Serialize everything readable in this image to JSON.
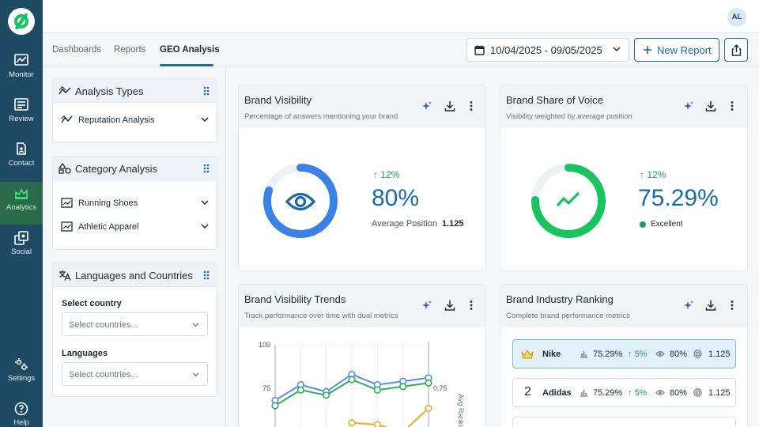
{
  "nav": {
    "items": [
      {
        "label": "Monitor",
        "icon": "monitor-chart-icon"
      },
      {
        "label": "Review",
        "icon": "review-icon"
      },
      {
        "label": "Contact",
        "icon": "contact-icon"
      },
      {
        "label": "Analytics",
        "icon": "analytics-icon",
        "active": true
      },
      {
        "label": "Social",
        "icon": "social-icon"
      },
      {
        "label": "Settings",
        "icon": "settings-icon"
      },
      {
        "label": "Help",
        "icon": "help-icon"
      }
    ]
  },
  "header": {
    "avatar_initials": "AL"
  },
  "tabs": [
    {
      "label": "Dashboards"
    },
    {
      "label": "Reports"
    },
    {
      "label": "GEO Analysis",
      "active": true
    }
  ],
  "toolbar": {
    "date_range": "10/04/2025 - 09/05/2025",
    "new_report_label": "New Report"
  },
  "filters": {
    "analysis_types": {
      "title": "Analysis Types",
      "items": [
        {
          "label": "Reputation Analysis"
        }
      ]
    },
    "category_analysis": {
      "title": "Category Analysis",
      "items": [
        {
          "label": "Running Shoes"
        },
        {
          "label": "Athletic Apparel"
        }
      ]
    },
    "languages_countries": {
      "title": "Languages and Countries",
      "country_label": "Select country",
      "country_placeholder": "Select countries...",
      "languages_label": "Languages",
      "languages_placeholder": "Select countries..."
    }
  },
  "widgets": {
    "brand_visibility": {
      "title": "Brand Visibility",
      "subtitle": "Percentage of answers mentioning your brand",
      "change": "12%",
      "value": "80%",
      "gauge_fraction": 0.8,
      "avg_position_label": "Average Position",
      "avg_position_value": "1.125",
      "color": "#3b82e8"
    },
    "share_of_voice": {
      "title": "Brand Share of Voice",
      "subtitle": "Visibility weighted by average position",
      "change": "12%",
      "value": "75.29%",
      "gauge_fraction": 0.7529,
      "status": "Excellent",
      "color": "#17c45e"
    },
    "visibility_trends": {
      "title": "Brand Visibility Trends",
      "subtitle": "Track performance over time with dual metrics",
      "y_ticks": [
        "100",
        "75"
      ],
      "right_tick": "0.75",
      "right_axis_label": "Avg Ranking"
    },
    "industry_ranking": {
      "title": "Brand Industry Ranking",
      "subtitle": "Complete brand performance metrics",
      "rows": [
        {
          "rank": "1",
          "name": "Nike",
          "share": "75.29%",
          "change": "5%",
          "visibility": "80%",
          "position": "1.125",
          "top": true
        },
        {
          "rank": "2",
          "name": "Adidas",
          "share": "75.29%",
          "change": "5%",
          "visibility": "80%",
          "position": "1.125",
          "top": false
        }
      ]
    }
  },
  "chart_data": {
    "type": "line",
    "title": "Brand Visibility Trends",
    "ylim_left": [
      50,
      100
    ],
    "y_ticks": [
      100,
      75
    ],
    "right_ticks": [
      0.75
    ],
    "ylabel_right": "Avg Ranking",
    "grid": true,
    "series": [
      {
        "color": "#5b8def",
        "values": [
          68,
          77,
          73,
          83,
          77,
          79,
          81
        ]
      },
      {
        "color": "#2fae5a",
        "values": [
          65,
          74,
          71,
          80,
          74,
          76,
          78
        ]
      },
      {
        "color": "#f5a623",
        "axis": "right",
        "values": [
          null,
          null,
          null,
          0.56,
          0.55,
          0.51,
          0.64
        ]
      }
    ]
  }
}
